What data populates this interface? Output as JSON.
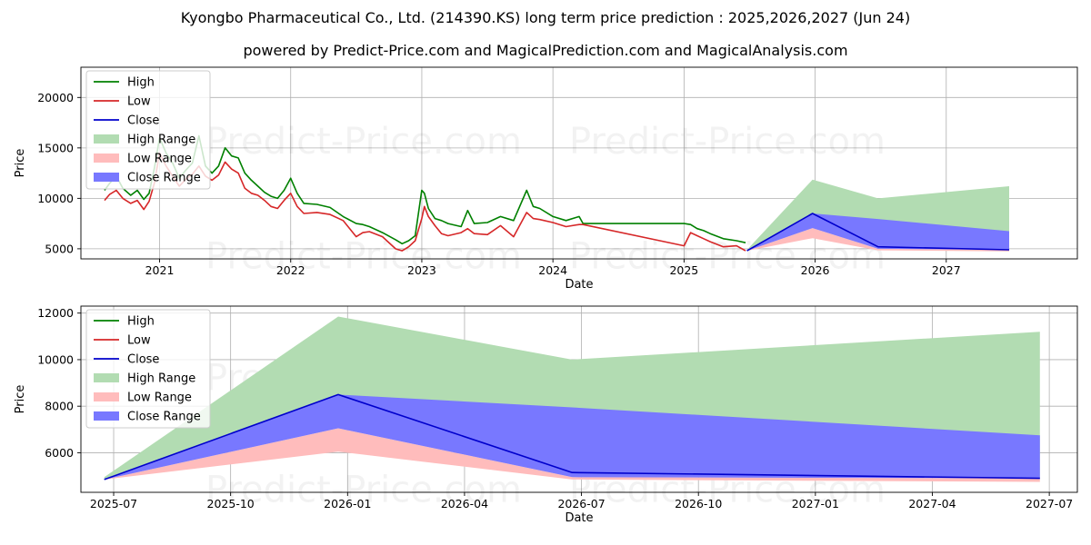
{
  "title": "Kyongbo Pharmaceutical Co., Ltd. (214390.KS) long term price prediction : 2025,2026,2027 (Jun 24)",
  "subtitle": "powered by Predict-Price.com and MagicalPrediction.com and MagicalAnalysis.com",
  "watermark": "Predict-Price.com",
  "colors": {
    "high": "#008000",
    "low": "#d62728",
    "close": "#0000cc",
    "high_range": "#b2dcb2",
    "low_range": "#ffbcbc",
    "close_range": "#7878ff",
    "grid": "#b0b0b0"
  },
  "legend": [
    "High",
    "Low",
    "Close",
    "High Range",
    "Low Range",
    "Close Range"
  ],
  "chart_data": [
    {
      "type": "line",
      "title": "",
      "xlabel": "Date",
      "ylabel": "Price",
      "xlim": [
        2020.4,
        2028.0
      ],
      "ylim": [
        4000,
        23000
      ],
      "x_tick_labels": [
        "2021",
        "2022",
        "2023",
        "2024",
        "2025",
        "2026",
        "2027"
      ],
      "x_tick_values": [
        2021,
        2022,
        2023,
        2024,
        2025,
        2026,
        2027
      ],
      "y_tick_values": [
        5000,
        10000,
        15000,
        20000
      ],
      "series": [
        {
          "name": "High",
          "x": [
            2020.58,
            2020.62,
            2020.67,
            2020.72,
            2020.78,
            2020.83,
            2020.88,
            2020.92,
            2020.96,
            2021.0,
            2021.05,
            2021.1,
            2021.15,
            2021.2,
            2021.25,
            2021.3,
            2021.35,
            2021.4,
            2021.45,
            2021.5,
            2021.55,
            2021.6,
            2021.65,
            2021.7,
            2021.75,
            2021.8,
            2021.85,
            2021.9,
            2021.95,
            2022.0,
            2022.05,
            2022.1,
            2022.2,
            2022.3,
            2022.4,
            2022.5,
            2022.55,
            2022.6,
            2022.7,
            2022.8,
            2022.85,
            2022.9,
            2022.95,
            2023.0,
            2023.02,
            2023.05,
            2023.1,
            2023.15,
            2023.2,
            2023.3,
            2023.35,
            2023.4,
            2023.5,
            2023.6,
            2023.7,
            2023.8,
            2023.85,
            2023.9,
            2024.0,
            2024.1,
            2024.2,
            2024.23,
            2025.0,
            2025.05,
            2025.1,
            2025.15,
            2025.2,
            2025.3,
            2025.4,
            2025.47
          ],
          "values": [
            10800,
            11500,
            12200,
            11000,
            10300,
            10800,
            9900,
            10500,
            13000,
            16000,
            14500,
            13500,
            12000,
            12800,
            13500,
            16200,
            13200,
            12500,
            13200,
            15000,
            14200,
            14000,
            12500,
            11800,
            11200,
            10600,
            10200,
            10000,
            10800,
            12000,
            10500,
            9500,
            9400,
            9100,
            8200,
            7500,
            7400,
            7200,
            6600,
            5900,
            5500,
            5800,
            6300,
            10800,
            10500,
            9000,
            8000,
            7800,
            7500,
            7200,
            8800,
            7500,
            7600,
            8200,
            7800,
            10800,
            9200,
            9000,
            8200,
            7800,
            8200,
            7500,
            7500,
            7400,
            7000,
            6800,
            6500,
            6000,
            5800,
            5600
          ]
        },
        {
          "name": "Low",
          "x": [
            2020.58,
            2020.62,
            2020.67,
            2020.72,
            2020.78,
            2020.83,
            2020.88,
            2020.92,
            2020.96,
            2021.0,
            2021.05,
            2021.1,
            2021.15,
            2021.2,
            2021.25,
            2021.3,
            2021.35,
            2021.4,
            2021.45,
            2021.5,
            2021.55,
            2021.6,
            2021.65,
            2021.7,
            2021.75,
            2021.8,
            2021.85,
            2021.9,
            2021.95,
            2022.0,
            2022.05,
            2022.1,
            2022.2,
            2022.3,
            2022.4,
            2022.5,
            2022.55,
            2022.6,
            2022.7,
            2022.8,
            2022.85,
            2022.9,
            2022.95,
            2023.0,
            2023.02,
            2023.05,
            2023.1,
            2023.15,
            2023.2,
            2023.3,
            2023.35,
            2023.4,
            2023.5,
            2023.6,
            2023.7,
            2023.8,
            2023.85,
            2023.9,
            2024.0,
            2024.1,
            2024.2,
            2024.23,
            2025.0,
            2025.05,
            2025.1,
            2025.15,
            2025.2,
            2025.3,
            2025.4,
            2025.47
          ],
          "values": [
            9800,
            10400,
            10800,
            10000,
            9500,
            9800,
            8900,
            9700,
            11500,
            14500,
            13200,
            12200,
            11200,
            11900,
            12400,
            13200,
            12200,
            11800,
            12300,
            13600,
            12900,
            12500,
            11000,
            10500,
            10300,
            9800,
            9200,
            9000,
            9800,
            10500,
            9200,
            8500,
            8600,
            8400,
            7800,
            6200,
            6600,
            6700,
            6200,
            5000,
            4800,
            5200,
            5800,
            8000,
            9200,
            8200,
            7300,
            6500,
            6300,
            6600,
            7000,
            6500,
            6400,
            7300,
            6200,
            8600,
            8000,
            7900,
            7600,
            7200,
            7400,
            7400,
            5300,
            6600,
            6300,
            6000,
            5700,
            5200,
            5300,
            4800
          ]
        },
        {
          "name": "Close",
          "x": [
            2025.48,
            2025.98,
            2026.48,
            2027.48
          ],
          "values": [
            4800,
            8500,
            5200,
            4900
          ]
        },
        {
          "name": "High Range",
          "x": [
            2025.48,
            2025.98,
            2026.48,
            2027.48
          ],
          "lower": [
            4800,
            8500,
            5200,
            4900
          ],
          "upper": [
            4900,
            11850,
            10000,
            11200
          ]
        },
        {
          "name": "Low Range",
          "x": [
            2025.48,
            2025.98,
            2026.48,
            2027.48
          ],
          "lower": [
            4800,
            6050,
            4850,
            4750
          ],
          "upper": [
            4800,
            7050,
            5000,
            4900
          ]
        },
        {
          "name": "Close Range",
          "x": [
            2025.48,
            2025.98,
            2026.48,
            2027.48
          ],
          "lower": [
            4800,
            7050,
            5000,
            4900
          ],
          "upper": [
            4800,
            8500,
            7950,
            6750
          ]
        }
      ]
    },
    {
      "type": "line",
      "title": "",
      "xlabel": "Date",
      "ylabel": "Price",
      "xlim": [
        2025.43,
        2027.56
      ],
      "ylim": [
        4300,
        12300
      ],
      "x_tick_labels": [
        "2025-07",
        "2025-10",
        "2026-01",
        "2026-04",
        "2026-07",
        "2026-10",
        "2027-01",
        "2027-04",
        "2027-07"
      ],
      "x_tick_values": [
        2025.5,
        2025.75,
        2026.0,
        2026.25,
        2026.5,
        2026.75,
        2027.0,
        2027.25,
        2027.5
      ],
      "y_tick_values": [
        6000,
        8000,
        10000,
        12000
      ],
      "series": [
        {
          "name": "Close",
          "x": [
            2025.48,
            2025.98,
            2026.48,
            2027.48
          ],
          "values": [
            4850,
            8500,
            5150,
            4900
          ]
        },
        {
          "name": "High Range",
          "x": [
            2025.48,
            2025.98,
            2026.48,
            2027.48
          ],
          "lower": [
            4850,
            8500,
            5150,
            4900
          ],
          "upper": [
            4950,
            11850,
            10000,
            11200
          ]
        },
        {
          "name": "Low Range",
          "x": [
            2025.48,
            2025.98,
            2026.48,
            2027.48
          ],
          "lower": [
            4850,
            6050,
            4850,
            4750
          ],
          "upper": [
            4850,
            7050,
            4950,
            4900
          ]
        },
        {
          "name": "Close Range",
          "x": [
            2025.48,
            2025.98,
            2026.48,
            2027.48
          ],
          "lower": [
            4850,
            7050,
            4950,
            4900
          ],
          "upper": [
            4850,
            8500,
            7950,
            6750
          ]
        }
      ]
    }
  ]
}
